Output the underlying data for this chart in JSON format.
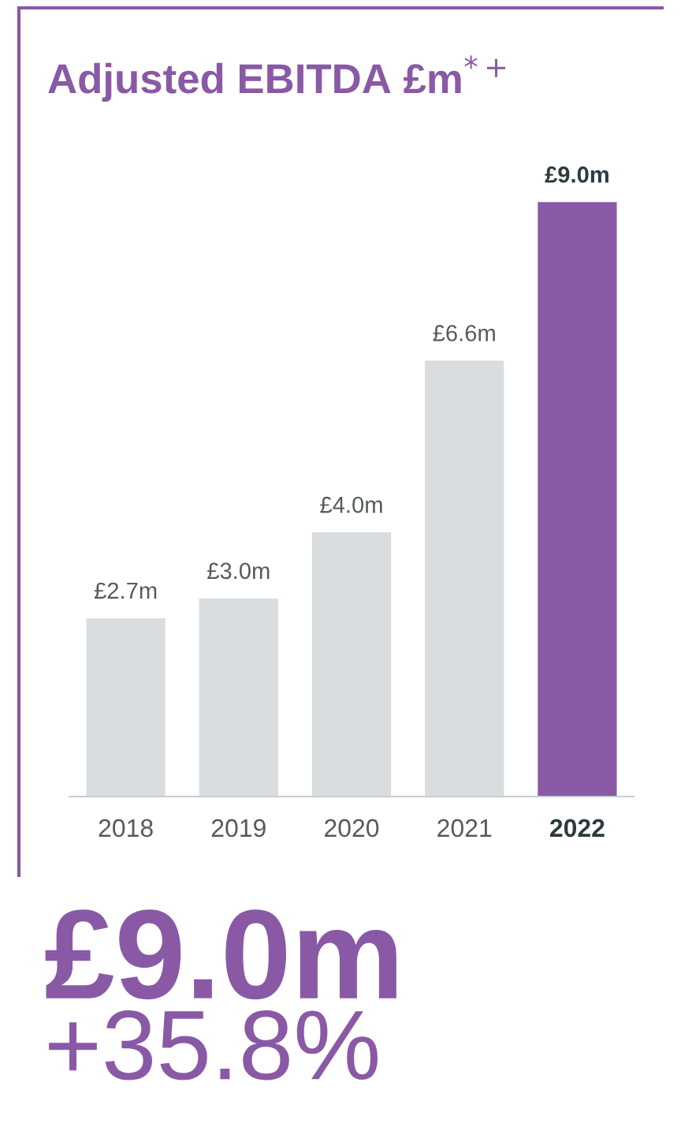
{
  "chart_data": {
    "type": "bar",
    "title": "Adjusted EBITDA £m$^{*+}$",
    "categories": [
      "2018",
      "2019",
      "2020",
      "2021",
      "2022"
    ],
    "values": [
      2.7,
      3.0,
      4.0,
      6.6,
      9.0
    ],
    "colors": [
      "#d9dde0",
      "#d9dde0",
      "#d9dde0",
      "#d9dde0",
      "#8a59a6"
    ],
    "value_labels": [
      "£2.7m",
      "£3.0m",
      "£4.0m",
      "£6.6m",
      "£9.0m"
    ],
    "annotations": [
      "£9.0m",
      "+35.8%"
    ],
    "grid": false,
    "legend": false
  }
}
